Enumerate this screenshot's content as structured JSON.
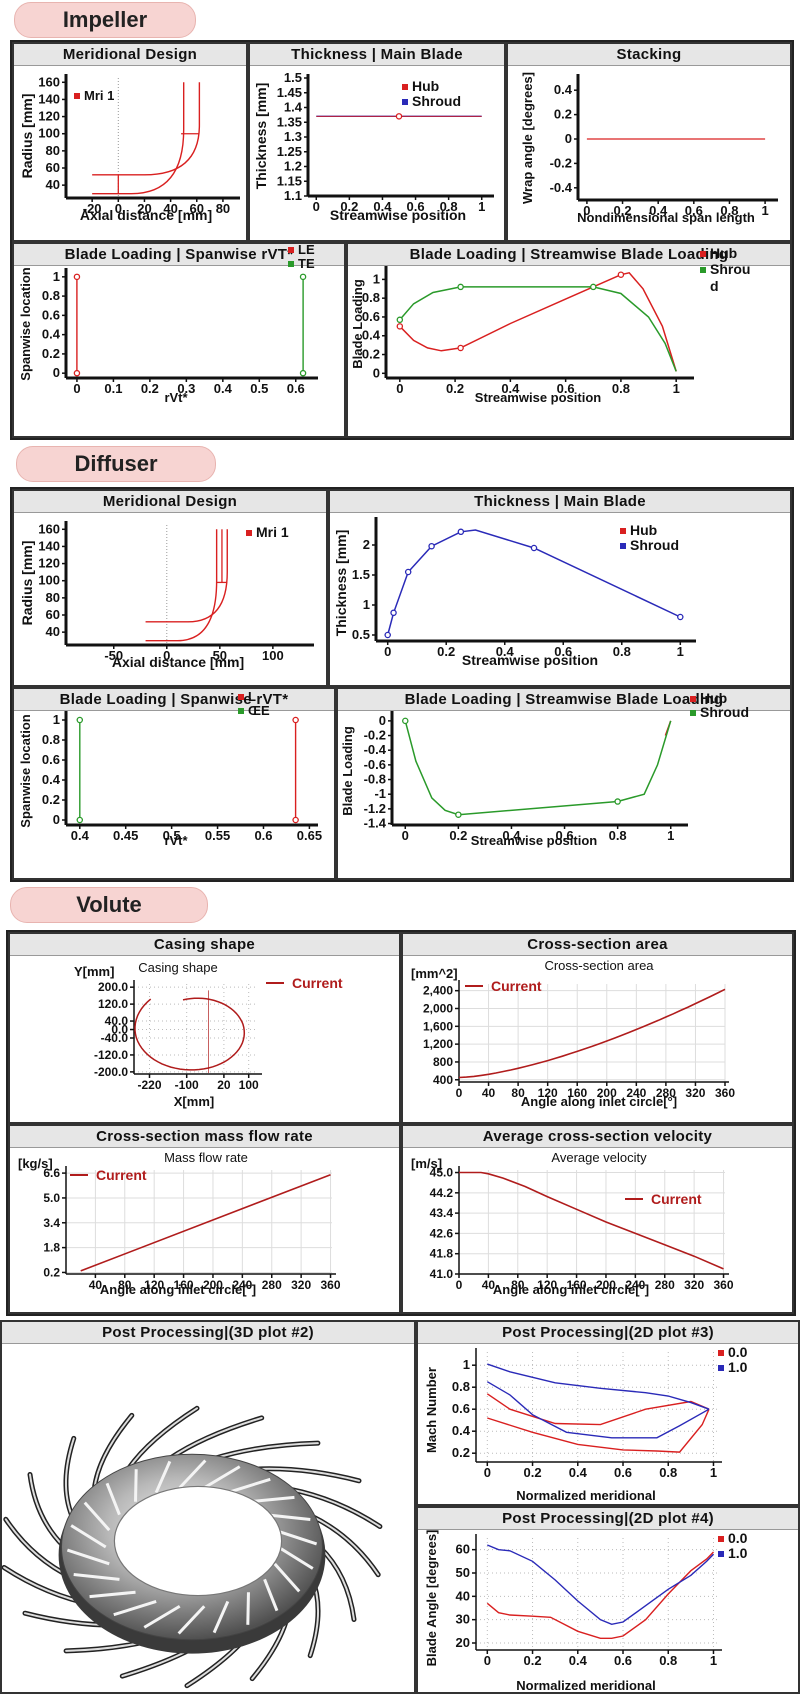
{
  "sections": {
    "impeller": "Impeller",
    "diffuser": "Diffuser",
    "volute": "Volute"
  },
  "colors": {
    "red": "#d92020",
    "green": "#2a9a2a",
    "blue": "#2a2ab8",
    "darkred": "#b01c1c",
    "axis": "#111111"
  },
  "charts": {
    "imp_meridional": {
      "title": "Meridional Design",
      "chart_data": {
        "type": "line",
        "xlabel": "Axial distance [mm]",
        "ylabel": "Radius [mm]",
        "xticks": [
          "-20",
          "0",
          "20",
          "40",
          "60",
          "80"
        ],
        "yticks": [
          "40",
          "60",
          "80",
          "100",
          "120",
          "140",
          "160"
        ],
        "xlim": [
          -40,
          90
        ],
        "ylim": [
          25,
          165
        ],
        "series": [
          {
            "name": "Mri 1",
            "color": "red"
          }
        ]
      }
    },
    "imp_thickness": {
      "title": "Thickness | Main Blade",
      "chart_data": {
        "type": "line",
        "xlabel": "Streamwise position",
        "ylabel": "Thickness [mm]",
        "xticks": [
          "0",
          "0.2",
          "0.4",
          "0.6",
          "0.8",
          "1"
        ],
        "yticks": [
          "1.1",
          "1.15",
          "1.2",
          "1.25",
          "1.3",
          "1.35",
          "1.4",
          "1.45",
          "1.5"
        ],
        "xlim": [
          -0.05,
          1.05
        ],
        "ylim": [
          1.1,
          1.5
        ],
        "series": [
          {
            "name": "Hub",
            "color": "red",
            "x": [
              0,
              0.5,
              1
            ],
            "y": [
              1.37,
              1.37,
              1.37
            ]
          },
          {
            "name": "Shroud",
            "color": "blue",
            "x": [
              0,
              0.5,
              1
            ],
            "y": [
              1.37,
              1.37,
              1.37
            ]
          }
        ]
      }
    },
    "imp_stacking": {
      "title": "Stacking",
      "chart_data": {
        "type": "line",
        "xlabel": "Nondimensional span length",
        "ylabel": "Wrap angle [degrees]",
        "xticks": [
          "0",
          "0.2",
          "0.4",
          "0.6",
          "0.8",
          "1"
        ],
        "yticks": [
          "-0.4",
          "-0.2",
          "0",
          "0.2",
          "0.4"
        ],
        "xlim": [
          -0.05,
          1.05
        ],
        "ylim": [
          -0.5,
          0.5
        ],
        "series": [
          {
            "x": [
              0,
              1
            ],
            "y": [
              0,
              0
            ],
            "color": "red"
          }
        ]
      }
    },
    "imp_span": {
      "title": "Blade Loading | Spanwise rVT*",
      "chart_data": {
        "type": "line",
        "xlabel": "rVt*",
        "ylabel": "Spanwise location",
        "xticks": [
          "0",
          "0.1",
          "0.2",
          "0.3",
          "0.4",
          "0.5",
          "0.6"
        ],
        "yticks": [
          "0",
          "0.2",
          "0.4",
          "0.6",
          "0.8",
          "1"
        ],
        "xlim": [
          -0.03,
          0.65
        ],
        "ylim": [
          -0.05,
          1.05
        ],
        "series": [
          {
            "name": "LE",
            "color": "red",
            "x": [
              0,
              0
            ],
            "y": [
              0,
              1
            ]
          },
          {
            "name": "TE",
            "color": "green",
            "x": [
              0.62,
              0.62
            ],
            "y": [
              0,
              1
            ]
          }
        ]
      }
    },
    "imp_stream": {
      "title": "Blade Loading | Streamwise Blade Loading",
      "chart_data": {
        "type": "line",
        "xlabel": "Streamwise position",
        "ylabel": "Blade Loading",
        "xticks": [
          "0",
          "0.2",
          "0.4",
          "0.6",
          "0.8",
          "1"
        ],
        "yticks": [
          "0",
          "0.2",
          "0.4",
          "0.6",
          "0.8",
          "1"
        ],
        "xlim": [
          -0.05,
          1.05
        ],
        "ylim": [
          -0.05,
          1.1
        ],
        "series": [
          {
            "name": "Hub",
            "color": "red",
            "x": [
              0,
              0.05,
              0.1,
              0.15,
              0.22,
              0.4,
              0.6,
              0.8,
              0.83,
              0.88,
              0.95,
              1
            ],
            "y": [
              0.5,
              0.35,
              0.27,
              0.24,
              0.27,
              0.53,
              0.79,
              1.05,
              1.07,
              0.9,
              0.5,
              0.02
            ],
            "pts": [
              [
                0,
                0.5
              ],
              [
                0.22,
                0.27
              ],
              [
                0.8,
                1.05
              ]
            ]
          },
          {
            "name": "Shroud",
            "color": "green",
            "x": [
              0,
              0.05,
              0.12,
              0.22,
              0.45,
              0.7,
              0.8,
              0.9,
              0.96,
              1
            ],
            "y": [
              0.57,
              0.74,
              0.86,
              0.92,
              0.92,
              0.92,
              0.85,
              0.6,
              0.32,
              0.02
            ],
            "pts": [
              [
                0,
                0.57
              ],
              [
                0.22,
                0.92
              ],
              [
                0.7,
                0.92
              ]
            ]
          }
        ]
      }
    },
    "dif_meridional": {
      "title": "Meridional Design",
      "chart_data": {
        "type": "line",
        "xlabel": "Axial distance [mm]",
        "ylabel": "Radius [mm]",
        "xticks": [
          "-50",
          "0",
          "50",
          "100"
        ],
        "yticks": [
          "40",
          "60",
          "80",
          "100",
          "120",
          "140",
          "160"
        ],
        "xlim": [
          -95,
          135
        ],
        "ylim": [
          25,
          165
        ],
        "series": [
          {
            "name": "Mri 1",
            "color": "red"
          }
        ]
      }
    },
    "dif_thickness": {
      "title": "Thickness | Main Blade",
      "chart_data": {
        "type": "line",
        "xlabel": "Streamwise position",
        "ylabel": "Thickness [mm]",
        "xticks": [
          "0",
          "0.2",
          "0.4",
          "0.6",
          "0.8",
          "1"
        ],
        "yticks": [
          "0.5",
          "1",
          "1.5",
          "2"
        ],
        "xlim": [
          -0.04,
          1.04
        ],
        "ylim": [
          0.4,
          2.4
        ],
        "series": [
          {
            "name": "Hub",
            "color": "red"
          },
          {
            "name": "Shroud",
            "color": "blue",
            "x": [
              0,
              0.02,
              0.07,
              0.15,
              0.25,
              0.3,
              0.5,
              1
            ],
            "y": [
              0.5,
              0.87,
              1.55,
              1.98,
              2.22,
              2.25,
              1.95,
              0.8
            ],
            "pts": [
              [
                0,
                0.5
              ],
              [
                0.02,
                0.87
              ],
              [
                0.07,
                1.55
              ],
              [
                0.15,
                1.98
              ],
              [
                0.25,
                2.22
              ],
              [
                0.5,
                1.95
              ],
              [
                1,
                0.8
              ]
            ]
          }
        ]
      }
    },
    "dif_span": {
      "title": "Blade Loading | Spanwise rVT*",
      "chart_data": {
        "type": "line",
        "xlabel": "rVt*",
        "ylabel": "Spanwise location",
        "xticks": [
          "0.4",
          "0.45",
          "0.5",
          "0.55",
          "0.6",
          "0.65"
        ],
        "yticks": [
          "0",
          "0.2",
          "0.4",
          "0.6",
          "0.8",
          "1"
        ],
        "xlim": [
          0.385,
          0.655
        ],
        "ylim": [
          -0.05,
          1.05
        ],
        "legend_labels": [
          "L",
          "ŒE"
        ],
        "series": [
          {
            "color": "green",
            "x": [
              0.4,
              0.4
            ],
            "y": [
              0,
              1
            ]
          },
          {
            "color": "red",
            "x": [
              0.635,
              0.635
            ],
            "y": [
              0,
              1
            ]
          }
        ]
      }
    },
    "dif_stream": {
      "title": "Blade Loading | Streamwise Blade Loading",
      "chart_data": {
        "type": "line",
        "xlabel": "Streamwise position",
        "ylabel": "Blade Loading",
        "xticks": [
          "0",
          "0.2",
          "0.4",
          "0.6",
          "0.8",
          "1"
        ],
        "yticks": [
          "-1.4",
          "-1.2",
          "-1",
          "-0.8",
          "-0.6",
          "-0.4",
          "-0.2",
          "0"
        ],
        "xlim": [
          -0.05,
          1.05
        ],
        "ylim": [
          -1.42,
          0.08
        ],
        "series": [
          {
            "name": "Hub",
            "color": "red",
            "x": [
              0.98,
              1
            ],
            "y": [
              -0.2,
              0
            ]
          },
          {
            "name": "Shroud",
            "color": "green",
            "x": [
              0,
              0.04,
              0.1,
              0.15,
              0.2,
              0.5,
              0.8,
              0.9,
              0.95,
              1
            ],
            "y": [
              0,
              -0.55,
              -1.05,
              -1.22,
              -1.28,
              -1.19,
              -1.1,
              -1.0,
              -0.6,
              0
            ],
            "pts": [
              [
                0,
                0
              ],
              [
                0.2,
                -1.28
              ],
              [
                0.8,
                -1.1
              ]
            ]
          }
        ]
      }
    },
    "vol_casing": {
      "title": "Casing shape",
      "chart_data": {
        "type": "line",
        "title": "Casing shape",
        "ylabel": "Y[mm]",
        "xlabel": "X[mm]",
        "xticks": [
          "-220",
          "-100",
          "20",
          "100"
        ],
        "yticks": [
          "-200.0",
          "-120.0",
          "-40.0",
          "0.0",
          "40.0",
          "120.0",
          "200.0"
        ],
        "xlim": [
          -270,
          130
        ],
        "ylim": [
          -210,
          215
        ],
        "series": [
          {
            "name": "Current",
            "color": "darkred"
          }
        ]
      }
    },
    "vol_area": {
      "title": "Cross-section area",
      "chart_data": {
        "type": "line",
        "title": "Cross-section area",
        "ylabel": "[mm^2]",
        "xlabel": "Angle along inlet circle[°]",
        "xticks": [
          "0",
          "40",
          "80",
          "120",
          "160",
          "200",
          "240",
          "280",
          "320",
          "360"
        ],
        "yticks": [
          "400",
          "800",
          "1,200",
          "1,600",
          "2,000",
          "2,400"
        ],
        "xlim": [
          0,
          360
        ],
        "ylim": [
          350,
          2550
        ],
        "series": [
          {
            "name": "Current",
            "color": "darkred",
            "x": [
              0,
              60,
              120,
              180,
              240,
              300,
              360
            ],
            "y": [
              450,
              620,
              860,
              1160,
              1500,
              1900,
              2430
            ]
          }
        ]
      }
    },
    "vol_mass": {
      "title": "Cross-section mass flow rate",
      "chart_data": {
        "type": "line",
        "title": "Mass flow rate",
        "ylabel": "[kg/s]",
        "xlabel": "Angle along inlet circle[°]",
        "xticks": [
          "40",
          "80",
          "120",
          "160",
          "200",
          "240",
          "280",
          "320",
          "360"
        ],
        "yticks": [
          "0.2",
          "1.8",
          "3.4",
          "5.0",
          "6.6"
        ],
        "xlim": [
          0,
          362
        ],
        "ylim": [
          0.1,
          6.8
        ],
        "series": [
          {
            "name": "Current",
            "color": "darkred",
            "x": [
              20,
              360
            ],
            "y": [
              0.3,
              6.5
            ]
          }
        ]
      }
    },
    "vol_vel": {
      "title": "Average cross-section velocity",
      "chart_data": {
        "type": "line",
        "title": "Average velocity",
        "ylabel": "[m/s]",
        "xlabel": "Angle along inlet circle[°]",
        "xticks": [
          "0",
          "40",
          "80",
          "120",
          "160",
          "200",
          "240",
          "280",
          "320",
          "360"
        ],
        "yticks": [
          "41.0",
          "41.8",
          "42.6",
          "43.4",
          "44.2",
          "45.0"
        ],
        "xlim": [
          0,
          362
        ],
        "ylim": [
          41,
          45.1
        ],
        "series": [
          {
            "name": "Current",
            "color": "darkred",
            "x": [
              0,
              30,
              40,
              60,
              90,
              120,
              160,
              200,
              240,
              280,
              320,
              360
            ],
            "y": [
              45,
              45,
              44.95,
              44.78,
              44.45,
              44.05,
              43.55,
              43.05,
              42.6,
              42.15,
              41.7,
              41.2
            ]
          }
        ]
      }
    },
    "pp_3d": {
      "title": "Post Processing|(3D plot #2)"
    },
    "pp_mach": {
      "title": "Post Processing|(2D plot #3)",
      "chart_data": {
        "type": "line",
        "xlabel": "Normalized meridional",
        "ylabel": "Mach Number",
        "xticks": [
          "0",
          "0.2",
          "0.4",
          "0.6",
          "0.8",
          "1"
        ],
        "yticks": [
          "0.2",
          "0.4",
          "0.6",
          "0.8",
          "1"
        ],
        "xlim": [
          -0.05,
          1.02
        ],
        "ylim": [
          0.12,
          1.12
        ],
        "series": [
          {
            "name": "0.0",
            "color": "red"
          },
          {
            "name": "1.0",
            "color": "blue"
          }
        ]
      }
    },
    "pp_angle": {
      "title": "Post Processing|(2D plot #4)",
      "chart_data": {
        "type": "line",
        "xlabel": "Normalized meridional",
        "ylabel": "Blade Angle [degrees]",
        "xticks": [
          "0",
          "0.2",
          "0.4",
          "0.6",
          "0.8",
          "1"
        ],
        "yticks": [
          "20",
          "30",
          "40",
          "50",
          "60"
        ],
        "xlim": [
          -0.05,
          1.02
        ],
        "ylim": [
          17,
          65
        ],
        "series": [
          {
            "name": "0.0",
            "color": "red",
            "x": [
              0,
              0.05,
              0.1,
              0.2,
              0.28,
              0.4,
              0.5,
              0.55,
              0.6,
              0.7,
              0.8,
              0.9,
              0.97,
              1
            ],
            "y": [
              37,
              33,
              32,
              31.5,
              31,
              25,
              22,
              22,
              23,
              30,
              41,
              51,
              56,
              59
            ]
          },
          {
            "name": "1.0",
            "color": "blue",
            "x": [
              0,
              0.05,
              0.1,
              0.2,
              0.3,
              0.4,
              0.5,
              0.55,
              0.6,
              0.7,
              0.8,
              0.9,
              0.97,
              1
            ],
            "y": [
              62,
              60,
              59.5,
              55,
              47,
              38,
              30,
              28,
              29,
              36,
              43,
              49,
              55,
              58
            ]
          }
        ]
      }
    }
  }
}
